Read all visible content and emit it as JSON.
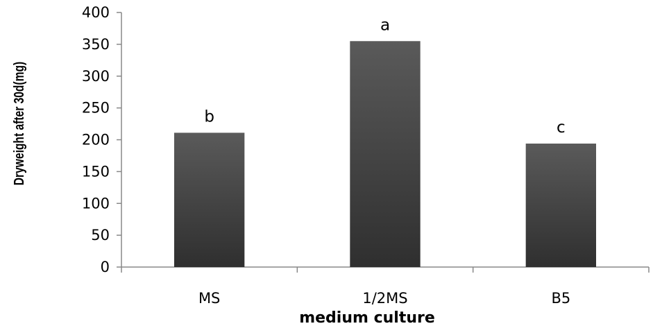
{
  "chart_data": {
    "type": "bar",
    "title": "",
    "xlabel": "medium culture",
    "ylabel": "Dryweight after 30d(mg)",
    "categories": [
      "MS",
      "1/2MS",
      "B5"
    ],
    "values": [
      211,
      355,
      194
    ],
    "bar_labels": [
      "b",
      "a",
      "c"
    ],
    "ylim": [
      0,
      400
    ],
    "yticks": [
      0,
      50,
      100,
      150,
      200,
      250,
      300,
      350,
      400
    ],
    "ytick_labels": [
      "0",
      "50",
      "100",
      "150",
      "200",
      "250",
      "300",
      "350",
      "400"
    ],
    "grid": false,
    "legend": "none",
    "bar_color_top": "#5a5a5a",
    "bar_color_bottom": "#2f2f2f",
    "axis_color": "#888888"
  }
}
